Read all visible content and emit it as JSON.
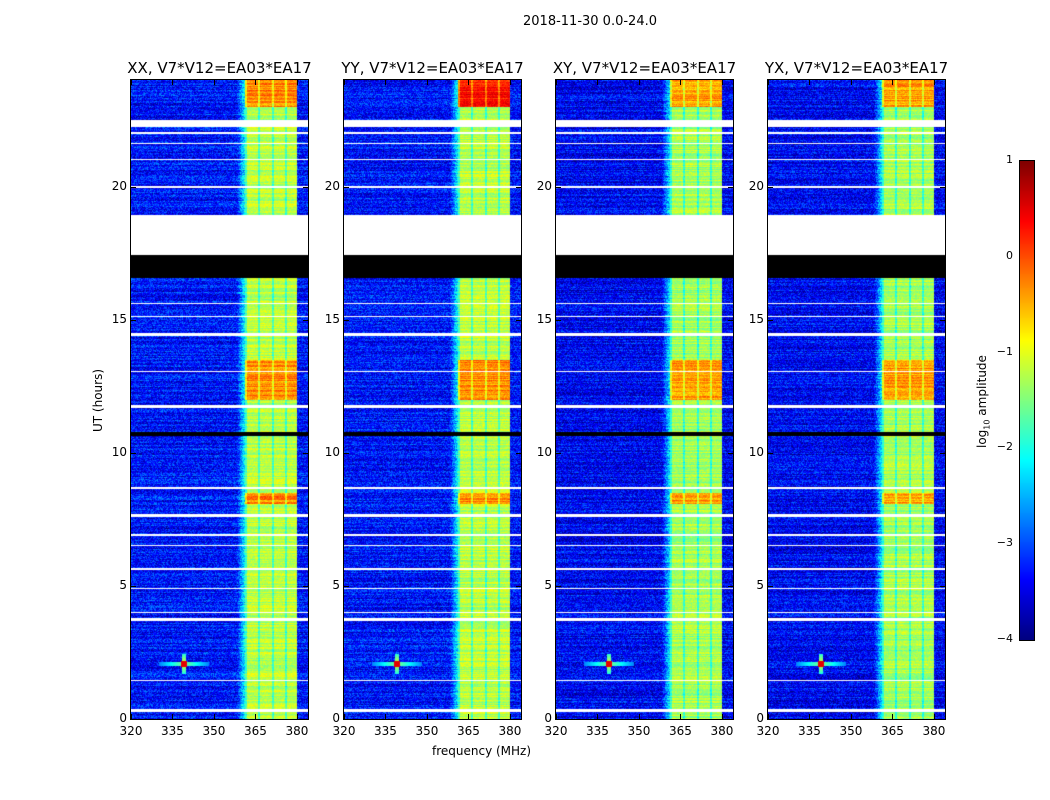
{
  "chart_data": {
    "type": "heatmap",
    "title": "2018-11-30 0.0-24.0",
    "xlabel": "frequency (MHz)",
    "ylabel": "UT (hours)",
    "panels": [
      {
        "title": "XX, V7*V12=EA03*EA17"
      },
      {
        "title": "YY, V7*V12=EA03*EA17"
      },
      {
        "title": "XY, V7*V12=EA03*EA17"
      },
      {
        "title": "YX, V7*V12=EA03*EA17"
      }
    ],
    "xlim": [
      320,
      384
    ],
    "ylim": [
      0,
      24
    ],
    "xticks": [
      320,
      335,
      350,
      365,
      380
    ],
    "yticks": [
      0,
      5,
      10,
      15,
      20
    ],
    "colormap": "jet",
    "colorbar": {
      "label": "log10 amplitude",
      "label_main": "log",
      "label_sub": "10",
      "label_rest": " amplitude",
      "range": [
        -4,
        1
      ],
      "ticks": [
        1,
        0,
        -1,
        -2,
        -3,
        -4
      ],
      "tick_labels": [
        "1",
        "0",
        "−1",
        "−2",
        "−3",
        "−4"
      ]
    },
    "background_log_amp": -3.3,
    "rfi_band_mhz": [
      361,
      380
    ],
    "rfi_band_log_amp": -1.2,
    "bright_periods_hours": [
      [
        8.1,
        8.5
      ],
      [
        12.0,
        13.5
      ],
      [
        23.0,
        24.0
      ]
    ],
    "point_source": {
      "freq_mhz": 339,
      "time_hours": 2.1
    },
    "flagged_white_hours": [
      [
        17.45,
        18.95
      ],
      [
        22.25,
        22.5
      ],
      [
        0.3,
        0.4
      ],
      [
        1.45,
        1.5
      ],
      [
        3.7,
        3.8
      ],
      [
        4.0,
        4.05
      ],
      [
        4.9,
        4.95
      ],
      [
        5.6,
        5.7
      ],
      [
        6.5,
        6.55
      ],
      [
        6.9,
        6.95
      ],
      [
        7.6,
        7.7
      ],
      [
        8.65,
        8.75
      ],
      [
        11.7,
        11.8
      ],
      [
        13.05,
        13.1
      ],
      [
        14.4,
        14.5
      ],
      [
        15.1,
        15.15
      ],
      [
        15.6,
        15.65
      ],
      [
        19.95,
        20.05
      ],
      [
        21.0,
        21.05
      ],
      [
        21.6,
        21.65
      ],
      [
        22.0,
        22.05
      ]
    ],
    "flagged_black_hours": [
      [
        16.6,
        17.45
      ],
      [
        10.65,
        10.8
      ]
    ]
  }
}
